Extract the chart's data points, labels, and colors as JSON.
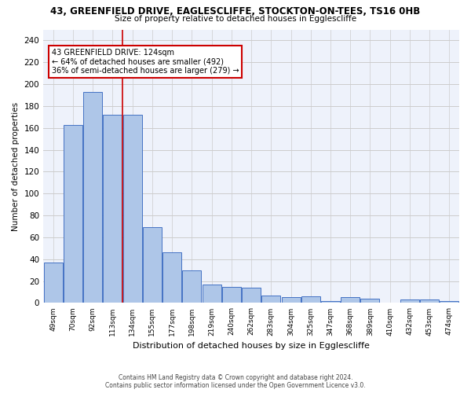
{
  "title_line1": "43, GREENFIELD DRIVE, EAGLESCLIFFE, STOCKTON-ON-TEES, TS16 0HB",
  "title_line2": "Size of property relative to detached houses in Egglescliffe",
  "xlabel": "Distribution of detached houses by size in Egglescliffe",
  "ylabel": "Number of detached properties",
  "categories": [
    "49sqm",
    "70sqm",
    "92sqm",
    "113sqm",
    "134sqm",
    "155sqm",
    "177sqm",
    "198sqm",
    "219sqm",
    "240sqm",
    "262sqm",
    "283sqm",
    "304sqm",
    "325sqm",
    "347sqm",
    "368sqm",
    "389sqm",
    "410sqm",
    "432sqm",
    "453sqm",
    "474sqm"
  ],
  "values": [
    37,
    163,
    193,
    172,
    172,
    69,
    46,
    30,
    17,
    15,
    14,
    7,
    5,
    6,
    2,
    5,
    4,
    0,
    3,
    3,
    2
  ],
  "bar_color": "#aec6e8",
  "bar_edgecolor": "#4472c4",
  "vline_x": 3.5,
  "vline_color": "#cc0000",
  "annotation_text": "43 GREENFIELD DRIVE: 124sqm\n← 64% of detached houses are smaller (492)\n36% of semi-detached houses are larger (279) →",
  "annotation_box_color": "#ffffff",
  "annotation_box_edgecolor": "#cc0000",
  "ylim": [
    0,
    250
  ],
  "yticks": [
    0,
    20,
    40,
    60,
    80,
    100,
    120,
    140,
    160,
    180,
    200,
    220,
    240
  ],
  "grid_color": "#cccccc",
  "background_color": "#eef2fb",
  "footer_line1": "Contains HM Land Registry data © Crown copyright and database right 2024.",
  "footer_line2": "Contains public sector information licensed under the Open Government Licence v3.0."
}
